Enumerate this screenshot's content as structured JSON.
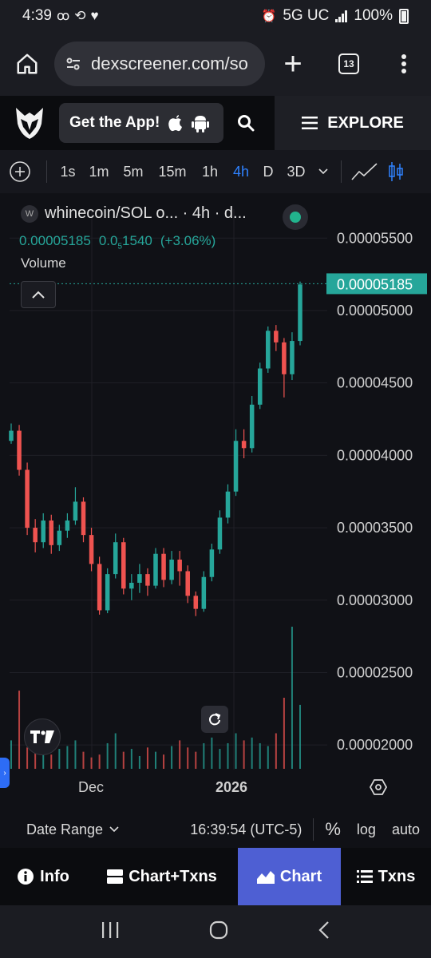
{
  "status_bar": {
    "time": "4:39",
    "network": "5G UC",
    "battery": "100%"
  },
  "browser": {
    "url": "dexscreener.com/so",
    "tab_count": "13"
  },
  "site_header": {
    "get_app_label": "Get the App!",
    "explore_label": "EXPLORE"
  },
  "toolbar": {
    "intervals": [
      "1s",
      "1m",
      "5m",
      "15m",
      "1h",
      "4h",
      "D",
      "3D"
    ],
    "active_interval": "4h"
  },
  "chart_header": {
    "badge": "W",
    "title": "whinecoin/SOL o... · 4h · d...",
    "price_current": "0.00005185",
    "price_open_prefix": "0.0",
    "price_open_subscript": "5",
    "price_open_suffix": "1540",
    "price_change": "(+3.06%)",
    "volume_label": "Volume"
  },
  "chart_data": {
    "type": "candlestick",
    "title": "whinecoin/SOL o... · 4h · d...",
    "y_ticks": [
      "0.00005500",
      "0.00005000",
      "0.00004500",
      "0.00004000",
      "0.00003500",
      "0.00003000",
      "0.00002500",
      "0.00002000"
    ],
    "y_tick_values": [
      5.5e-05,
      5e-05,
      4.5e-05,
      4e-05,
      3.5e-05,
      3e-05,
      2.5e-05,
      2e-05
    ],
    "ylim": [
      1.83e-05,
      5.7e-05
    ],
    "last_price_label": "0.00005185",
    "last_price": 5.185e-05,
    "x_labels": [
      "Dec",
      "2026"
    ],
    "up_color": "#26a69a",
    "down_color": "#ef5350",
    "candles": [
      [
        4.1e-05,
        4.17e-05,
        4.08e-05,
        4.22e-05
      ],
      [
        4.17e-05,
        3.9e-05,
        3.86e-05,
        4.21e-05
      ],
      [
        3.9e-05,
        3.5e-05,
        3.45e-05,
        3.95e-05
      ],
      [
        3.5e-05,
        3.4e-05,
        3.33e-05,
        3.56e-05
      ],
      [
        3.4e-05,
        3.55e-05,
        3.36e-05,
        3.6e-05
      ],
      [
        3.55e-05,
        3.38e-05,
        3.32e-05,
        3.59e-05
      ],
      [
        3.38e-05,
        3.48e-05,
        3.34e-05,
        3.52e-05
      ],
      [
        3.48e-05,
        3.55e-05,
        3.43e-05,
        3.6e-05
      ],
      [
        3.55e-05,
        3.68e-05,
        3.52e-05,
        3.78e-05
      ],
      [
        3.68e-05,
        3.45e-05,
        3.4e-05,
        3.71e-05
      ],
      [
        3.45e-05,
        3.25e-05,
        3.2e-05,
        3.5e-05
      ],
      [
        3.25e-05,
        2.93e-05,
        2.9e-05,
        3.3e-05
      ],
      [
        2.93e-05,
        3.18e-05,
        2.91e-05,
        3.22e-05
      ],
      [
        3.18e-05,
        3.4e-05,
        3.15e-05,
        3.46e-05
      ],
      [
        3.4e-05,
        3.08e-05,
        3.04e-05,
        3.43e-05
      ],
      [
        3.08e-05,
        3.12e-05,
        3e-05,
        3.18e-05
      ],
      [
        3.12e-05,
        3.18e-05,
        3.05e-05,
        3.25e-05
      ],
      [
        3.18e-05,
        3.1e-05,
        3.03e-05,
        3.22e-05
      ],
      [
        3.1e-05,
        3.32e-05,
        3.08e-05,
        3.36e-05
      ],
      [
        3.32e-05,
        3.14e-05,
        3.09e-05,
        3.36e-05
      ],
      [
        3.14e-05,
        3.28e-05,
        3.11e-05,
        3.34e-05
      ],
      [
        3.28e-05,
        3.2e-05,
        3.1e-05,
        3.34e-05
      ],
      [
        3.2e-05,
        3.03e-05,
        2.98e-05,
        3.24e-05
      ],
      [
        3.03e-05,
        2.94e-05,
        2.89e-05,
        3.06e-05
      ],
      [
        2.94e-05,
        3.16e-05,
        2.92e-05,
        3.2e-05
      ],
      [
        3.16e-05,
        3.35e-05,
        3.13e-05,
        3.39e-05
      ],
      [
        3.35e-05,
        3.57e-05,
        3.32e-05,
        3.62e-05
      ],
      [
        3.57e-05,
        3.75e-05,
        3.53e-05,
        3.8e-05
      ],
      [
        3.75e-05,
        4.1e-05,
        3.72e-05,
        4.18e-05
      ],
      [
        4.1e-05,
        4.05e-05,
        3.98e-05,
        4.18e-05
      ],
      [
        4.05e-05,
        4.35e-05,
        4.02e-05,
        4.41e-05
      ],
      [
        4.35e-05,
        4.6e-05,
        4.32e-05,
        4.64e-05
      ],
      [
        4.6e-05,
        4.86e-05,
        4.57e-05,
        4.89e-05
      ],
      [
        4.86e-05,
        4.78e-05,
        4.72e-05,
        4.9e-05
      ],
      [
        4.78e-05,
        4.56e-05,
        4.4e-05,
        4.81e-05
      ],
      [
        4.56e-05,
        4.79e-05,
        4.52e-05,
        4.85e-05
      ],
      [
        4.79e-05,
        5.18e-05,
        4.76e-05,
        5.2e-05
      ]
    ],
    "volume": [
      0.2,
      0.55,
      0.15,
      0.12,
      0.15,
      0.1,
      0.14,
      0.16,
      0.2,
      0.12,
      0.08,
      0.1,
      0.18,
      0.25,
      0.12,
      0.14,
      0.09,
      0.15,
      0.12,
      0.1,
      0.16,
      0.2,
      0.15,
      0.12,
      0.18,
      0.22,
      0.14,
      0.18,
      0.25,
      0.2,
      0.22,
      0.18,
      0.16,
      0.25,
      0.5,
      1.0,
      0.45
    ]
  },
  "chart_footer": {
    "date_range_label": "Date Range",
    "clock": "16:39:54 (UTC-5)",
    "percent_label": "%",
    "log_label": "log",
    "auto_label": "auto"
  },
  "tabs": [
    {
      "label": "Info",
      "selected": false
    },
    {
      "label": "Chart+Txns",
      "selected": false
    },
    {
      "label": "Chart",
      "selected": true
    },
    {
      "label": "Txns",
      "selected": false
    }
  ]
}
